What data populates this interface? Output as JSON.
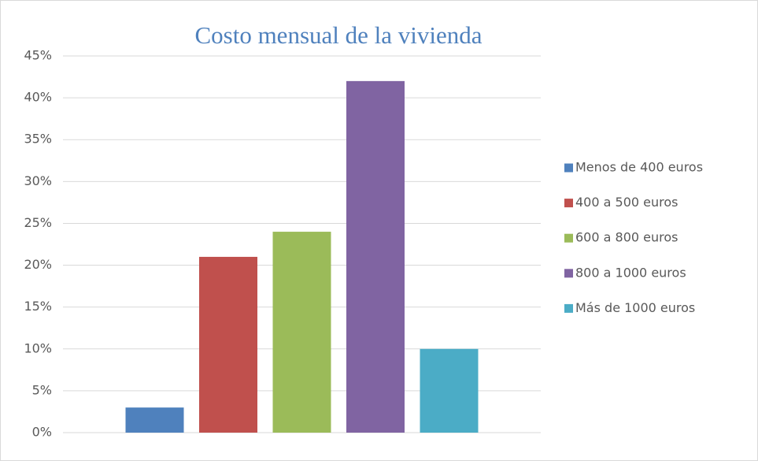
{
  "chart_data": {
    "type": "bar",
    "title": "Costo mensual de la vivienda",
    "series": [
      {
        "name": "Menos de 400 euros",
        "color": "#4f81bd",
        "values": [
          3
        ]
      },
      {
        "name": "400 a 500 euros",
        "color": "#c0504d",
        "values": [
          21
        ]
      },
      {
        "name": "600 a 800 euros",
        "color": "#9bbb59",
        "values": [
          24
        ]
      },
      {
        "name": "800 a 1000 euros",
        "color": "#8064a2",
        "values": [
          42
        ]
      },
      {
        "name": "Más de 1000 euros",
        "color": "#4bacc6",
        "values": [
          10
        ]
      }
    ],
    "ylim": [
      0,
      45
    ],
    "yticks": [
      {
        "value": 0,
        "label": "0%"
      },
      {
        "value": 5,
        "label": "5%"
      },
      {
        "value": 10,
        "label": "10%"
      },
      {
        "value": 15,
        "label": "15%"
      },
      {
        "value": 20,
        "label": "20%"
      },
      {
        "value": 25,
        "label": "25%"
      },
      {
        "value": 30,
        "label": "30%"
      },
      {
        "value": 35,
        "label": "35%"
      },
      {
        "value": 40,
        "label": "40%"
      },
      {
        "value": 45,
        "label": "45%"
      }
    ],
    "grid": true,
    "legend": "right"
  }
}
